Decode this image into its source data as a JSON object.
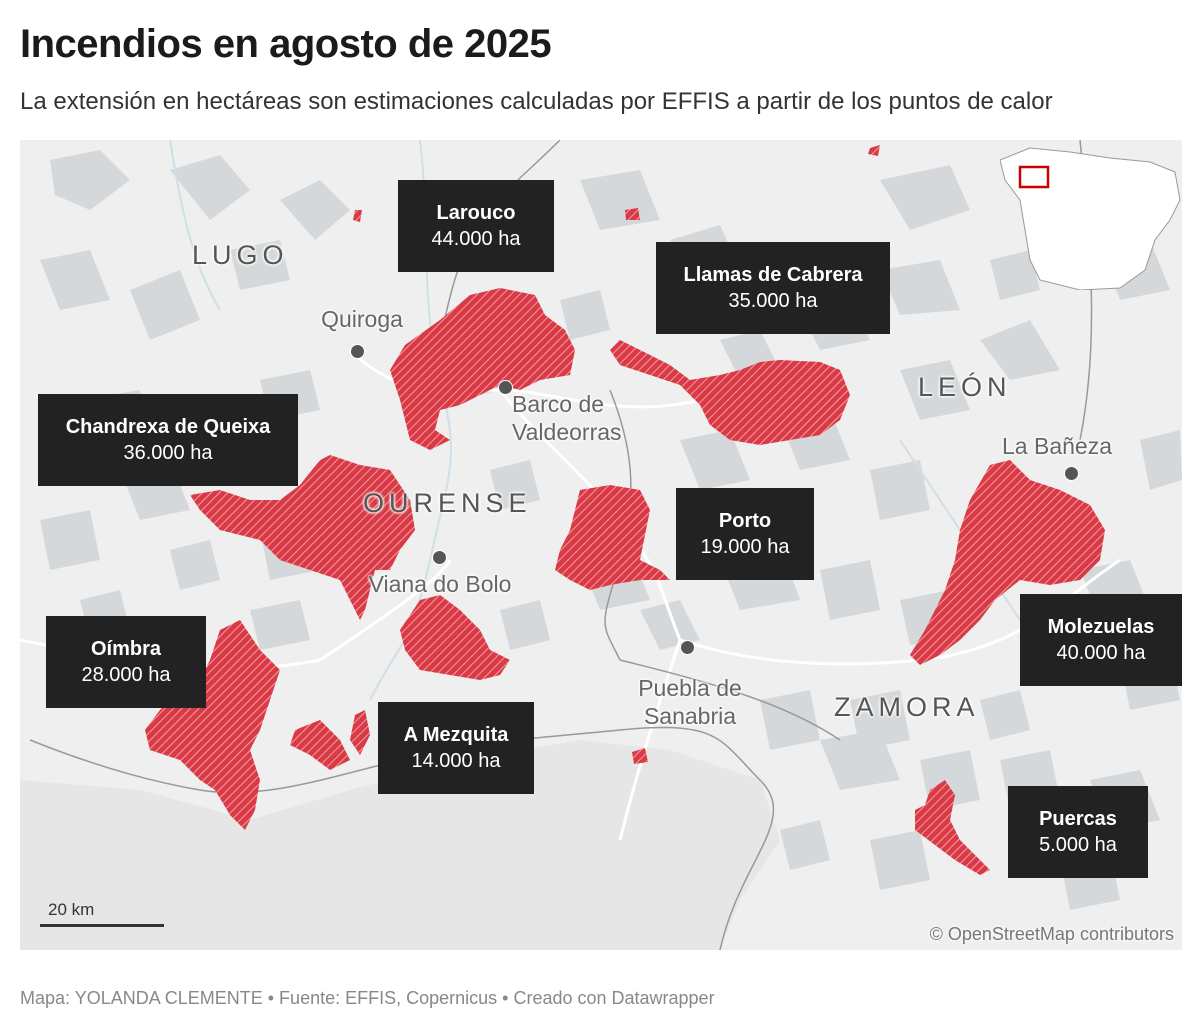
{
  "header": {
    "title": "Incendios en agosto de 2025",
    "subtitle": "La extensión en hectáreas son estimaciones calculadas por EFFIS a partir de los puntos de calor"
  },
  "fires": [
    {
      "name": "Larouco",
      "area": "44.000 ha"
    },
    {
      "name": "Llamas de Cabrera",
      "area": "35.000 ha"
    },
    {
      "name": "Chandrexa de Queixa",
      "area": "36.000 ha"
    },
    {
      "name": "Porto",
      "area": "19.000 ha"
    },
    {
      "name": "Oímbra",
      "area": "28.000 ha"
    },
    {
      "name": "A Mezquita",
      "area": "14.000 ha"
    },
    {
      "name": "Molezuelas",
      "area": "40.000 ha"
    },
    {
      "name": "Puercas",
      "area": "5.000 ha"
    }
  ],
  "places": [
    {
      "name": "Quiroga"
    },
    {
      "name": "Barco de\nValdeorras"
    },
    {
      "name": "Viana do Bolo"
    },
    {
      "name": "Puebla de\nSanabria"
    },
    {
      "name": "La Bañeza"
    }
  ],
  "regions": [
    "LUGO",
    "OURENSE",
    "LEÓN",
    "ZAMORA"
  ],
  "scale": {
    "label": "20 km"
  },
  "attribution": "© OpenStreetMap contributors",
  "footer": "Mapa: YOLANDA CLEMENTE • Fuente: EFFIS, Copernicus • Creado con Datawrapper",
  "colors": {
    "fire": "#d93a45",
    "label_bg": "#222222",
    "forest": "#d3d6d8",
    "land": "#efefef",
    "inset_box": "#cc0000"
  }
}
